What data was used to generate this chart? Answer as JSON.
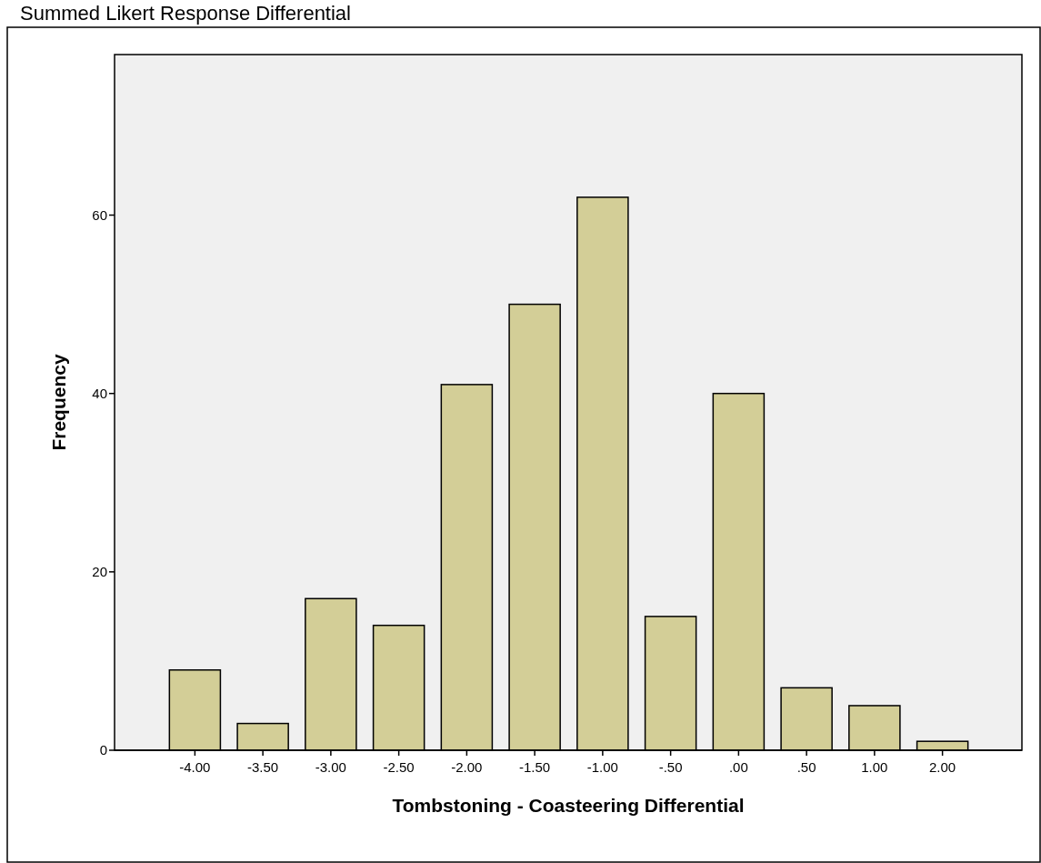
{
  "chart_data": {
    "type": "bar",
    "title": "Summed Likert Response Differential",
    "xlabel": "Tombstoning - Coasteering Differential",
    "ylabel": "Frequency",
    "categories": [
      "-4.00",
      "-3.50",
      "-3.00",
      "-2.50",
      "-2.00",
      "-1.50",
      "-1.00",
      "-.50",
      ".00",
      ".50",
      "1.00",
      "2.00"
    ],
    "values": [
      9,
      3,
      17,
      14,
      41,
      50,
      62,
      15,
      40,
      7,
      5,
      1
    ],
    "color": "#d3ce97",
    "ylim": [
      0,
      78
    ],
    "yticks": [
      0,
      20,
      40,
      60
    ]
  }
}
